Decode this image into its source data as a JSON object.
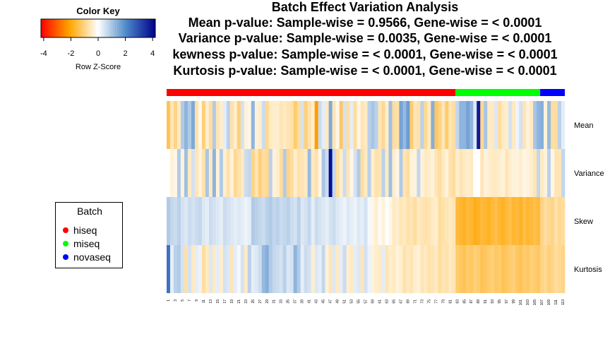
{
  "title_lines": [
    "Batch Effect Variation Analysis",
    "Mean p-value: Sample-wise = 0.9566, Gene-wise = < 0.0001",
    "Variance p-value: Sample-wise = 0.0035, Gene-wise = < 0.0001",
    "kewness p-value: Sample-wise = < 0.0001, Gene-wise = < 0.0001",
    "Kurtosis p-value: Sample-wise = < 0.0001, Gene-wise = < 0.0001"
  ],
  "color_key": {
    "title": "Color Key",
    "xlabel": "Row Z-Score",
    "ticks": [
      "-4",
      "-2",
      "0",
      "2",
      "4"
    ],
    "tick_values": [
      -4,
      -2,
      0,
      2,
      4
    ],
    "range": [
      -4.2,
      4.2
    ]
  },
  "legend": {
    "title": "Batch",
    "items": [
      {
        "label": "hiseq",
        "color": "#ff0000"
      },
      {
        "label": "miseq",
        "color": "#00ff00"
      },
      {
        "label": "novaseq",
        "color": "#0000ff"
      }
    ]
  },
  "colors": {
    "low": "#ff0000",
    "mid_low": "#ffa500",
    "mid": "#ffffff",
    "mid_high": "#4a86c8",
    "high": "#00008b"
  },
  "chart_data": {
    "type": "heatmap",
    "title": "Batch Effect Variation Analysis",
    "rows": [
      "Mean",
      "Variance",
      "Skew",
      "Kurtosis"
    ],
    "x_tick_labels": [
      "1",
      "3",
      "5",
      "7",
      "9",
      "11",
      "13",
      "15",
      "17",
      "19",
      "21",
      "23",
      "25",
      "27",
      "29",
      "31",
      "33",
      "35",
      "37",
      "39",
      "41",
      "43",
      "45",
      "47",
      "49",
      "51",
      "53",
      "55",
      "57",
      "59",
      "61",
      "63",
      "65",
      "67",
      "69",
      "71",
      "73",
      "75",
      "77",
      "79",
      "81",
      "83",
      "85",
      "87",
      "89",
      "91",
      "93",
      "95",
      "97",
      "99",
      "101",
      "103",
      "105",
      "107",
      "109",
      "111",
      "113"
    ],
    "batch_annotation": [
      {
        "batch": "hiseq",
        "count": 82,
        "color": "#ff0000"
      },
      {
        "batch": "miseq",
        "count": 24,
        "color": "#00ff00"
      },
      {
        "batch": "novaseq",
        "count": 7,
        "color": "#0000ff"
      }
    ],
    "values": [
      [
        -1.4,
        -0.6,
        -1.0,
        -0.5,
        0.9,
        1.3,
        0.9,
        1.5,
        -0.7,
        -0.2,
        -1.1,
        -0.4,
        -0.8,
        0.9,
        -0.6,
        -0.4,
        0.3,
        0.8,
        -0.7,
        -0.4,
        -1.1,
        0.5,
        -0.3,
        -0.2,
        1.3,
        -0.3,
        -0.4,
        0.6,
        -0.9,
        -0.5,
        -0.4,
        -0.4,
        -0.6,
        -0.5,
        -0.6,
        -0.7,
        -1.2,
        -0.8,
        0.5,
        -1.1,
        -0.7,
        -0.4,
        -2.2,
        0.6,
        0.3,
        -0.5,
        1.5,
        -0.6,
        -0.2,
        -1.3,
        0.5,
        -0.8,
        0.3,
        -0.8,
        -0.2,
        -0.6,
        -0.5,
        0.8,
        1.0,
        0.8,
        -0.6,
        -0.9,
        -0.4,
        1.1,
        -0.8,
        -0.7,
        1.6,
        1.2,
        1.7,
        -1.2,
        -0.6,
        -0.7,
        0.8,
        -0.9,
        -0.5,
        1.4,
        -1.3,
        -1.0,
        -0.6,
        -1.2,
        -0.6,
        -0.8,
        0.7,
        1.3,
        1.3,
        1.6,
        1.3,
        0.4,
        3.8,
        -0.9,
        1.0,
        -0.5,
        -0.5,
        0.4,
        -0.8,
        -0.5,
        -0.4,
        0.5,
        -0.5,
        0.2,
        0.5,
        -0.6,
        -0.3,
        -0.5,
        1.0,
        1.3,
        1.4,
        -0.3,
        1.2,
        -0.8,
        -0.8,
        0.8,
        0.3
      ],
      [
        0.0,
        -0.3,
        -0.2,
        0.9,
        -0.3,
        1.1,
        -0.5,
        0.5,
        -0.6,
        -0.3,
        -0.7,
        1.0,
        -0.5,
        1.3,
        -0.3,
        0.9,
        -0.4,
        -0.7,
        -0.3,
        -0.9,
        -0.7,
        -0.5,
        0.6,
        0.7,
        -1.0,
        -0.6,
        -1.1,
        -0.8,
        -0.9,
        0.8,
        -0.3,
        -0.4,
        -0.8,
        0.9,
        -1.0,
        -0.8,
        -0.4,
        -0.7,
        -0.6,
        -0.5,
        1.2,
        -0.5,
        -0.7,
        -0.2,
        1.0,
        0.6,
        4.0,
        0.7,
        -0.8,
        -0.4,
        0.6,
        -0.6,
        -0.2,
        0.5,
        0.9,
        -0.8,
        -0.5,
        0.8,
        -0.4,
        -0.7,
        -0.6,
        0.8,
        -0.5,
        1.1,
        -0.4,
        -0.2,
        0.9,
        -0.6,
        -0.8,
        -0.3,
        -0.3,
        0.7,
        -0.3,
        -0.5,
        -0.4,
        -0.3,
        -0.6,
        -0.8,
        -0.5,
        -0.3,
        -0.7,
        -0.8,
        -0.4,
        -0.6,
        -0.5,
        -0.4,
        -0.5,
        0.0,
        0.0,
        -0.6,
        -0.3,
        -0.4,
        -0.5,
        -0.5,
        -0.4,
        -0.3,
        -0.6,
        -0.4,
        -0.3,
        -0.3,
        -0.4,
        -0.2,
        -0.3,
        -0.4,
        -0.6,
        0.7,
        -0.5,
        -0.3,
        0.8,
        -0.2,
        -0.6,
        -0.6,
        0.7
      ],
      [
        0.9,
        0.7,
        0.6,
        0.8,
        0.5,
        0.4,
        0.6,
        0.5,
        0.6,
        0.7,
        0.4,
        0.3,
        0.6,
        0.5,
        0.4,
        0.3,
        0.6,
        0.5,
        0.4,
        0.3,
        0.4,
        0.3,
        0.2,
        0.3,
        0.9,
        0.8,
        0.7,
        0.6,
        0.8,
        0.9,
        0.7,
        0.8,
        0.6,
        0.7,
        0.8,
        0.6,
        0.5,
        0.8,
        0.4,
        0.5,
        0.7,
        0.3,
        0.6,
        0.5,
        0.4,
        0.3,
        0.5,
        0.6,
        0.4,
        0.3,
        0.2,
        0.4,
        0.3,
        0.2,
        0.4,
        0.3,
        0.5,
        0.1,
        -0.2,
        -0.4,
        -0.1,
        -0.3,
        0.0,
        -0.2,
        -0.5,
        -0.4,
        -0.6,
        -0.5,
        -0.7,
        -0.6,
        -0.8,
        -0.5,
        -0.6,
        -0.7,
        -0.6,
        -0.5,
        -0.4,
        -0.8,
        -0.7,
        -0.6,
        -0.5,
        -0.6,
        -1.6,
        -1.7,
        -1.8,
        -1.6,
        -1.7,
        -1.9,
        -1.8,
        -1.6,
        -1.7,
        -1.8,
        -1.6,
        -1.5,
        -1.7,
        -1.8,
        -1.6,
        -1.5,
        -1.7,
        -1.6,
        -1.8,
        -1.5,
        -1.7,
        -1.6,
        -1.5,
        -1.6,
        -1.0,
        -0.8,
        -0.9,
        -1.0,
        -0.7,
        -0.9,
        -0.8
      ],
      [
        2.4,
        0.3,
        0.8,
        0.9,
        0.5,
        -0.7,
        0.5,
        -0.5,
        0.3,
        0.2,
        -0.8,
        -0.5,
        0.4,
        -0.5,
        0.3,
        -0.4,
        0.5,
        0.4,
        -0.6,
        0.3,
        0.1,
        0.5,
        -0.5,
        0.8,
        0.3,
        0.4,
        0.6,
        1.2,
        1.4,
        0.9,
        0.7,
        0.6,
        0.5,
        0.8,
        0.4,
        0.5,
        1.3,
        0.9,
        0.3,
        0.6,
        0.5,
        -0.4,
        0.4,
        0.3,
        0.7,
        -0.3,
        -0.6,
        0.4,
        -0.5,
        0.3,
        0.6,
        -0.4,
        -0.5,
        0.3,
        0.4,
        -0.6,
        0.5,
        0.2,
        -0.3,
        -0.4,
        -0.5,
        0.3,
        -0.6,
        -0.4,
        -0.5,
        -0.3,
        -0.4,
        -0.7,
        -0.5,
        -0.6,
        -0.4,
        -0.3,
        -0.6,
        -0.5,
        -0.7,
        -0.6,
        -0.5,
        -0.8,
        -0.6,
        -0.7,
        -0.5,
        -0.6,
        -1.2,
        -1.3,
        -1.4,
        -1.2,
        -1.3,
        -1.1,
        -1.2,
        -1.4,
        -1.3,
        -1.2,
        -1.1,
        -1.3,
        -1.2,
        -1.4,
        -1.3,
        -1.2,
        -1.1,
        -1.3,
        -1.4,
        -1.2,
        -1.3,
        -1.1,
        -1.2,
        -1.3,
        -1.0,
        -0.9,
        -1.1,
        -1.0,
        -0.8,
        -0.9,
        -1.0
      ]
    ],
    "zlim": [
      -4.2,
      4.2
    ]
  }
}
